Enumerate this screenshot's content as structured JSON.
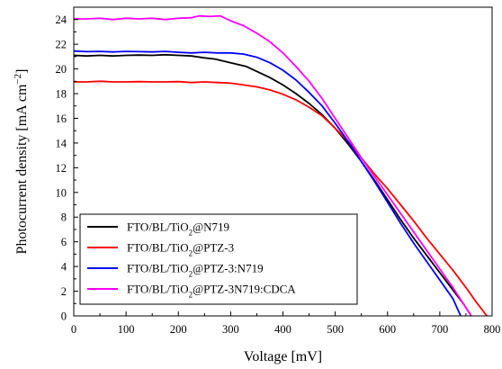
{
  "chart_data": {
    "type": "line",
    "xlabel": "Voltage [mV]",
    "ylabel_main": "Photocurrent density [mA cm",
    "ylabel_sup": "−2",
    "ylabel_end": "]",
    "xlim": [
      0,
      800
    ],
    "ylim": [
      0,
      25
    ],
    "xticks": [
      0,
      100,
      200,
      300,
      400,
      500,
      600,
      700,
      800
    ],
    "yticks": [
      0,
      2,
      4,
      6,
      8,
      10,
      12,
      14,
      16,
      18,
      20,
      22,
      24
    ],
    "grid": false,
    "legend_position": "bottom-left",
    "series": [
      {
        "name": "FTO/BL/TiO2@N719",
        "name_parts": [
          "FTO/BL/TiO",
          "2",
          "@N719"
        ],
        "color": "#000000",
        "points": [
          [
            0,
            21.1
          ],
          [
            25,
            21.05
          ],
          [
            50,
            21.1
          ],
          [
            75,
            21.05
          ],
          [
            100,
            21.1
          ],
          [
            125,
            21.12
          ],
          [
            150,
            21.1
          ],
          [
            175,
            21.15
          ],
          [
            200,
            21.1
          ],
          [
            225,
            21.05
          ],
          [
            250,
            20.9
          ],
          [
            270,
            20.8
          ],
          [
            290,
            20.6
          ],
          [
            310,
            20.4
          ],
          [
            330,
            20.2
          ],
          [
            350,
            19.8
          ],
          [
            375,
            19.3
          ],
          [
            400,
            18.7
          ],
          [
            425,
            18.0
          ],
          [
            450,
            17.2
          ],
          [
            475,
            16.3
          ],
          [
            500,
            15.2
          ],
          [
            525,
            13.9
          ],
          [
            550,
            12.5
          ],
          [
            575,
            11.0
          ],
          [
            600,
            9.4
          ],
          [
            625,
            7.8
          ],
          [
            650,
            6.3
          ],
          [
            675,
            4.9
          ],
          [
            700,
            3.5
          ],
          [
            725,
            2.1
          ],
          [
            745,
            1.0
          ],
          [
            760,
            0
          ]
        ]
      },
      {
        "name": "FTO/BL/TiO2@PTZ-3",
        "name_parts": [
          "FTO/BL/TiO",
          "2",
          "@PTZ-3"
        ],
        "color": "#ff0000",
        "points": [
          [
            0,
            18.95
          ],
          [
            25,
            18.95
          ],
          [
            50,
            19.0
          ],
          [
            75,
            18.95
          ],
          [
            100,
            18.95
          ],
          [
            125,
            18.97
          ],
          [
            150,
            18.95
          ],
          [
            175,
            18.95
          ],
          [
            200,
            18.97
          ],
          [
            225,
            18.9
          ],
          [
            250,
            18.95
          ],
          [
            275,
            18.9
          ],
          [
            300,
            18.85
          ],
          [
            325,
            18.7
          ],
          [
            350,
            18.55
          ],
          [
            375,
            18.3
          ],
          [
            400,
            17.95
          ],
          [
            425,
            17.5
          ],
          [
            450,
            16.9
          ],
          [
            475,
            16.2
          ],
          [
            500,
            15.2
          ],
          [
            525,
            14.1
          ],
          [
            550,
            12.8
          ],
          [
            575,
            11.5
          ],
          [
            600,
            10.3
          ],
          [
            625,
            9.0
          ],
          [
            650,
            7.7
          ],
          [
            675,
            6.3
          ],
          [
            700,
            5.0
          ],
          [
            725,
            3.7
          ],
          [
            750,
            2.3
          ],
          [
            770,
            1.1
          ],
          [
            790,
            0
          ]
        ]
      },
      {
        "name": "FTO/BL/TiO2@PTZ-3:N719",
        "name_parts": [
          "FTO/BL/TiO",
          "2",
          "@PTZ-3:N719"
        ],
        "color": "#0000ff",
        "points": [
          [
            0,
            21.45
          ],
          [
            25,
            21.4
          ],
          [
            50,
            21.42
          ],
          [
            75,
            21.38
          ],
          [
            100,
            21.42
          ],
          [
            125,
            21.4
          ],
          [
            150,
            21.38
          ],
          [
            175,
            21.42
          ],
          [
            200,
            21.35
          ],
          [
            225,
            21.3
          ],
          [
            250,
            21.35
          ],
          [
            275,
            21.3
          ],
          [
            300,
            21.3
          ],
          [
            325,
            21.2
          ],
          [
            350,
            20.95
          ],
          [
            375,
            20.5
          ],
          [
            400,
            19.9
          ],
          [
            425,
            19.1
          ],
          [
            450,
            18.1
          ],
          [
            475,
            17.0
          ],
          [
            500,
            15.6
          ],
          [
            525,
            14.1
          ],
          [
            550,
            12.5
          ],
          [
            575,
            10.9
          ],
          [
            600,
            9.2
          ],
          [
            625,
            7.5
          ],
          [
            650,
            5.9
          ],
          [
            675,
            4.4
          ],
          [
            700,
            2.9
          ],
          [
            725,
            1.4
          ],
          [
            740,
            0
          ]
        ]
      },
      {
        "name": "FTO/BL/TiO2@PTZ-3N719:CDCA",
        "name_parts": [
          "FTO/BL/TiO",
          "2",
          "@PTZ-3N719:CDCA"
        ],
        "color": "#ff00ff",
        "points": [
          [
            0,
            24.05
          ],
          [
            25,
            24.05
          ],
          [
            50,
            24.1
          ],
          [
            75,
            24.0
          ],
          [
            100,
            24.1
          ],
          [
            125,
            24.05
          ],
          [
            150,
            24.1
          ],
          [
            175,
            24.0
          ],
          [
            200,
            24.1
          ],
          [
            225,
            24.15
          ],
          [
            240,
            24.3
          ],
          [
            260,
            24.25
          ],
          [
            280,
            24.3
          ],
          [
            300,
            23.9
          ],
          [
            325,
            23.5
          ],
          [
            350,
            22.9
          ],
          [
            375,
            22.2
          ],
          [
            400,
            21.3
          ],
          [
            425,
            20.2
          ],
          [
            450,
            19.0
          ],
          [
            475,
            17.6
          ],
          [
            500,
            16.0
          ],
          [
            525,
            14.4
          ],
          [
            550,
            12.8
          ],
          [
            575,
            11.3
          ],
          [
            600,
            9.8
          ],
          [
            625,
            8.3
          ],
          [
            650,
            6.8
          ],
          [
            675,
            5.3
          ],
          [
            700,
            3.8
          ],
          [
            725,
            2.3
          ],
          [
            745,
            1.0
          ],
          [
            760,
            0
          ]
        ]
      }
    ]
  }
}
